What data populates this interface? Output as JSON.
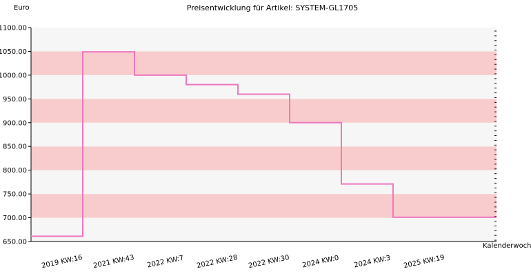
{
  "chart_data": {
    "type": "line",
    "step": true,
    "title": "Preisentwicklung für Artikel: SYSTEM-GL1705",
    "ylabel": "Euro",
    "xlabel": "Kalenderwoche",
    "ylim": [
      650,
      1100
    ],
    "yticks": [
      "650.00",
      "700.00",
      "750.00",
      "800.00",
      "850.00",
      "900.00",
      "950.00",
      "1000.00",
      "1050.00",
      "1100.00"
    ],
    "categories": [
      "2019 KW:16",
      "2021 KW:43",
      "2022 KW:7",
      "2022 KW:28",
      "2022 KW:30",
      "2024 KW:0",
      "2024 KW:3",
      "2025 KW:19"
    ],
    "series": [
      {
        "values": [
          661,
          1049,
          1000,
          980,
          960,
          900,
          771,
          701
        ],
        "color": "#ee77c0"
      }
    ],
    "band_colors": [
      "#f6f6f6",
      "#f8cccc"
    ],
    "grid": false,
    "legend": "none"
  }
}
